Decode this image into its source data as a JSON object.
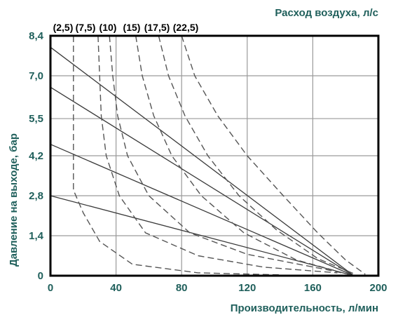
{
  "chart_data": {
    "type": "line",
    "title": "",
    "xlabel": "Производительность, л/мин",
    "ylabel": "Давление на выходе, бар",
    "top_label": "Расход воздуха, л/с",
    "xlim": [
      0,
      200
    ],
    "ylim": [
      0,
      8.4
    ],
    "x_ticks": [
      "0",
      "40",
      "80",
      "120",
      "160",
      "200"
    ],
    "y_ticks": [
      "0",
      "1,4",
      "2,8",
      "4,2",
      "5,5",
      "7,0",
      "8,4"
    ],
    "grid": true,
    "colors": {
      "axis_text": "#1f5f5b",
      "grid": "#9a9a9a",
      "lines": "#3a3a3a"
    },
    "pressure_lines": [
      {
        "points": [
          [
            0,
            8.0
          ],
          [
            185,
            0
          ]
        ]
      },
      {
        "points": [
          [
            0,
            6.6
          ],
          [
            185,
            0
          ]
        ]
      },
      {
        "points": [
          [
            0,
            4.6
          ],
          [
            185,
            0
          ]
        ]
      },
      {
        "points": [
          [
            0,
            2.8
          ],
          [
            185,
            0
          ]
        ]
      }
    ],
    "air_flow_curves": [
      {
        "label": "(2,5)",
        "points": [
          [
            14,
            8.4
          ],
          [
            14,
            6.0
          ],
          [
            14,
            4.0
          ],
          [
            14,
            3.0
          ],
          [
            20,
            2.2
          ],
          [
            30,
            1.2
          ],
          [
            50,
            0.4
          ],
          [
            90,
            0.1
          ],
          [
            140,
            0.03
          ]
        ]
      },
      {
        "label": "(7,5)",
        "points": [
          [
            29,
            8.4
          ],
          [
            30,
            7.0
          ],
          [
            31,
            5.6
          ],
          [
            34,
            4.2
          ],
          [
            42,
            2.8
          ],
          [
            58,
            1.5
          ],
          [
            90,
            0.7
          ],
          [
            130,
            0.3
          ],
          [
            175,
            0.1
          ]
        ]
      },
      {
        "label": "(10)",
        "points": [
          [
            36,
            8.4
          ],
          [
            38,
            7.0
          ],
          [
            41,
            5.6
          ],
          [
            47,
            4.2
          ],
          [
            60,
            2.8
          ],
          [
            85,
            1.5
          ],
          [
            120,
            0.75
          ],
          [
            165,
            0.25
          ],
          [
            182,
            0.05
          ]
        ]
      },
      {
        "label": "(15)",
        "points": [
          [
            52,
            8.4
          ],
          [
            56,
            7.0
          ],
          [
            63,
            5.6
          ],
          [
            74,
            4.2
          ],
          [
            92,
            2.8
          ],
          [
            118,
            1.5
          ],
          [
            150,
            0.55
          ],
          [
            183,
            0.03
          ]
        ]
      },
      {
        "label": "(17,5)",
        "points": [
          [
            66,
            8.4
          ],
          [
            72,
            7.0
          ],
          [
            82,
            5.6
          ],
          [
            96,
            4.2
          ],
          [
            115,
            2.8
          ],
          [
            138,
            1.6
          ],
          [
            163,
            0.6
          ],
          [
            186,
            0.05
          ]
        ]
      },
      {
        "label": "(22,5)",
        "points": [
          [
            80,
            8.4
          ],
          [
            88,
            7.0
          ],
          [
            102,
            5.6
          ],
          [
            120,
            4.2
          ],
          [
            142,
            2.8
          ],
          [
            163,
            1.5
          ],
          [
            180,
            0.55
          ],
          [
            192,
            0.05
          ]
        ]
      }
    ]
  }
}
